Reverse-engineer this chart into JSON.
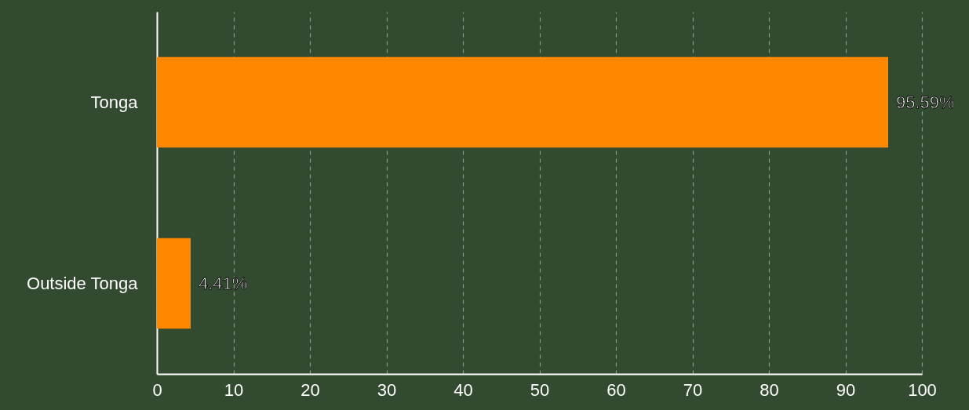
{
  "chart_data": {
    "type": "bar",
    "orientation": "horizontal",
    "categories": [
      "Tonga",
      "Outside Tonga"
    ],
    "values": [
      95.59,
      4.41
    ],
    "value_labels": [
      "95.59%",
      "4.41%"
    ],
    "color": "#ff8800",
    "xlim": [
      0,
      100
    ],
    "xticks": [
      0,
      10,
      20,
      30,
      40,
      50,
      60,
      70,
      80,
      90,
      100
    ],
    "grid": "x"
  }
}
